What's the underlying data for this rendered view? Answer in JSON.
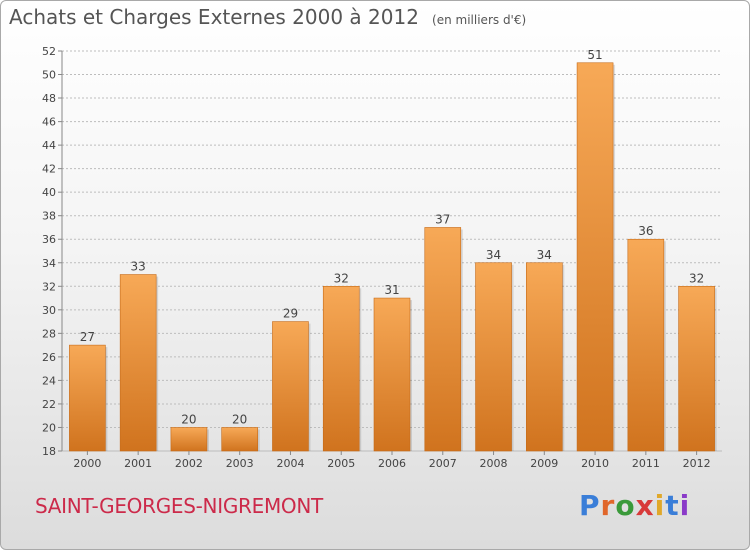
{
  "title": "Achats et Charges Externes 2000 à 2012",
  "subtitle": "(en milliers d'€)",
  "commune": "SAINT-GEORGES-NIGREMONT",
  "brand": {
    "text": "Proxiti",
    "letter_colors": [
      "#3a7ed8",
      "#e0662a",
      "#3a9a3a",
      "#d83a3a",
      "#e0a82a",
      "#3a7ed8",
      "#8a3ac8"
    ]
  },
  "colors": {
    "bar_light": "#f7a957",
    "bar_dark": "#d0731e",
    "grid": "#bdbdbd",
    "axis_text": "#444444"
  },
  "chart_data": {
    "type": "bar",
    "categories": [
      "2000",
      "2001",
      "2002",
      "2003",
      "2004",
      "2005",
      "2006",
      "2007",
      "2008",
      "2009",
      "2010",
      "2011",
      "2012"
    ],
    "values": [
      27,
      33,
      20,
      20,
      29,
      32,
      31,
      37,
      34,
      34,
      51,
      36,
      32
    ],
    "data_labels": [
      "27",
      "33",
      "20",
      "20",
      "29",
      "32",
      "31",
      "37",
      "34",
      "34",
      "51",
      "36",
      "32"
    ],
    "yticks": [
      "18",
      "20",
      "22",
      "24",
      "26",
      "28",
      "30",
      "32",
      "34",
      "36",
      "38",
      "40",
      "42",
      "44",
      "46",
      "48",
      "50",
      "52"
    ],
    "ylim": [
      18,
      52
    ],
    "grid": true,
    "xlabel": "",
    "ylabel": ""
  }
}
